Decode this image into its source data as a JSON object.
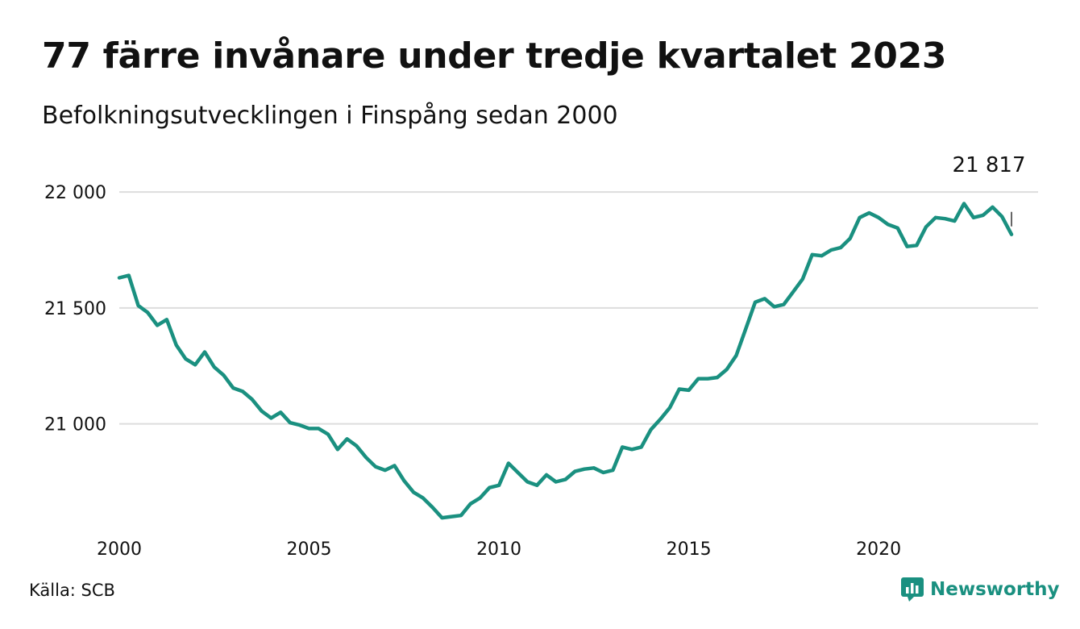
{
  "title": "77 färre invånare under tredje kvartalet 2023",
  "subtitle": "Befolkningsutvecklingen i Finspång sedan 2000",
  "source": "Källa: SCB",
  "brand": "Newsworthy",
  "colors": {
    "line": "#1a9080",
    "grid": "#dddddd",
    "brand": "#1a9080"
  },
  "chart_data": {
    "type": "line",
    "x_ticks": [
      2000,
      2005,
      2010,
      2015,
      2020
    ],
    "y_ticks": [
      {
        "value": 21000,
        "label": "21 000"
      },
      {
        "value": 21500,
        "label": "21 500"
      },
      {
        "value": 22000,
        "label": "22 000"
      }
    ],
    "xlim": [
      2000,
      2024.2
    ],
    "ylim": [
      20550,
      22150
    ],
    "grid": true,
    "annotation": {
      "x": 2023.5,
      "value": 21817,
      "label": "21 817"
    },
    "x": [
      2000.0,
      2000.25,
      2000.5,
      2000.75,
      2001.0,
      2001.25,
      2001.5,
      2001.75,
      2002.0,
      2002.25,
      2002.5,
      2002.75,
      2003.0,
      2003.25,
      2003.5,
      2003.75,
      2004.0,
      2004.25,
      2004.5,
      2004.75,
      2005.0,
      2005.25,
      2005.5,
      2005.75,
      2006.0,
      2006.25,
      2006.5,
      2006.75,
      2007.0,
      2007.25,
      2007.5,
      2007.75,
      2008.0,
      2008.25,
      2008.5,
      2008.75,
      2009.0,
      2009.25,
      2009.5,
      2009.75,
      2010.0,
      2010.25,
      2010.5,
      2010.75,
      2011.0,
      2011.25,
      2011.5,
      2011.75,
      2012.0,
      2012.25,
      2012.5,
      2012.75,
      2013.0,
      2013.25,
      2013.5,
      2013.75,
      2014.0,
      2014.25,
      2014.5,
      2014.75,
      2015.0,
      2015.25,
      2015.5,
      2015.75,
      2016.0,
      2016.25,
      2016.5,
      2016.75,
      2017.0,
      2017.25,
      2017.5,
      2017.75,
      2018.0,
      2018.25,
      2018.5,
      2018.75,
      2019.0,
      2019.25,
      2019.5,
      2019.75,
      2020.0,
      2020.25,
      2020.5,
      2020.75,
      2021.0,
      2021.25,
      2021.5,
      2021.75,
      2022.0,
      2022.25,
      2022.5,
      2022.75,
      2023.0,
      2023.25,
      2023.5
    ],
    "values": [
      21630,
      21640,
      21510,
      21480,
      21425,
      21450,
      21340,
      21280,
      21255,
      21310,
      21245,
      21210,
      21155,
      21140,
      21105,
      21055,
      21025,
      21050,
      21005,
      20995,
      20980,
      20980,
      20955,
      20890,
      20935,
      20905,
      20855,
      20815,
      20800,
      20820,
      20755,
      20705,
      20680,
      20640,
      20595,
      20600,
      20605,
      20655,
      20680,
      20725,
      20735,
      20830,
      20790,
      20750,
      20735,
      20780,
      20750,
      20760,
      20795,
      20805,
      20810,
      20790,
      20800,
      20900,
      20890,
      20900,
      20975,
      21020,
      21070,
      21150,
      21145,
      21195,
      21195,
      21200,
      21235,
      21295,
      21410,
      21525,
      21540,
      21505,
      21515,
      21570,
      21625,
      21730,
      21725,
      21750,
      21760,
      21800,
      21890,
      21910,
      21890,
      21860,
      21845,
      21765,
      21770,
      21850,
      21890,
      21885,
      21875,
      21950,
      21890,
      21900,
      21935,
      21894,
      21817
    ]
  }
}
